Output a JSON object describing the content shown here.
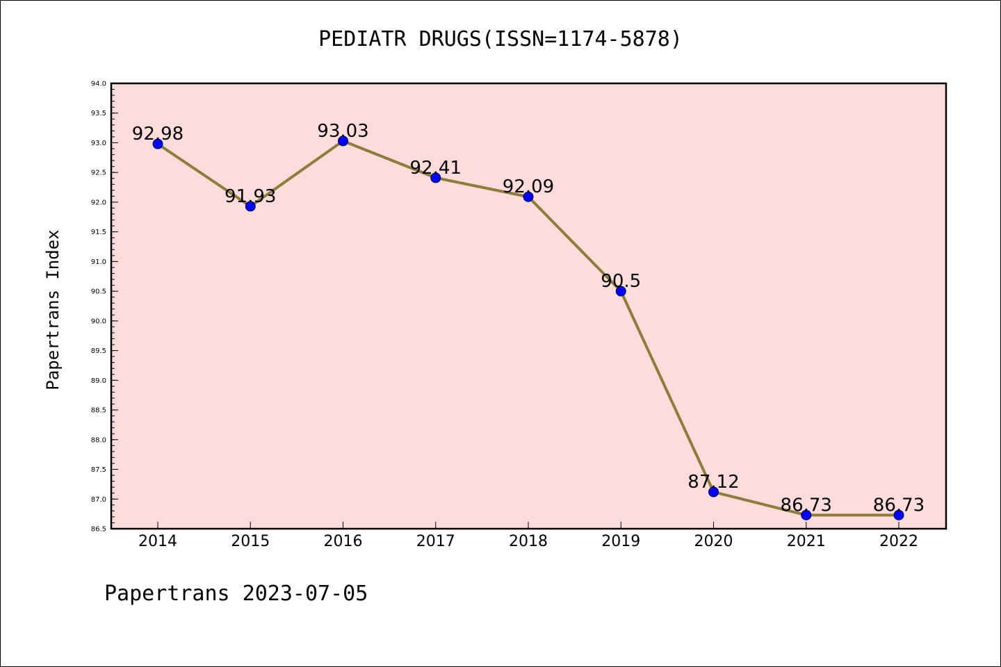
{
  "chart_data": {
    "type": "line",
    "title": "PEDIATR DRUGS(ISSN=1174-5878)",
    "ylabel": "Papertrans Index",
    "xlabel": "",
    "categories": [
      "2014",
      "2015",
      "2016",
      "2017",
      "2018",
      "2019",
      "2020",
      "2021",
      "2022"
    ],
    "series": [
      {
        "values": [
          92.98,
          91.93,
          93.03,
          92.41,
          92.09,
          90.5,
          87.12,
          86.73,
          86.73
        ],
        "data_labels": [
          "92.98",
          "91.93",
          "93.03",
          "92.41",
          "92.09",
          "90.5",
          "87.12",
          "86.73",
          "86.73"
        ]
      }
    ],
    "ylim": [
      86.5,
      94.0
    ],
    "yticks": [
      "86.5",
      "87.0",
      "87.5",
      "88.0",
      "88.5",
      "89.0",
      "89.5",
      "90.0",
      "90.5",
      "91.0",
      "91.5",
      "92.0",
      "92.5",
      "93.0",
      "93.5",
      "94.0"
    ],
    "grid": false,
    "colors": {
      "plot_background": "#fddcdb",
      "line": "#8b7d3a",
      "marker": "#0000ff"
    }
  },
  "footer": "Papertrans 2023-07-05"
}
